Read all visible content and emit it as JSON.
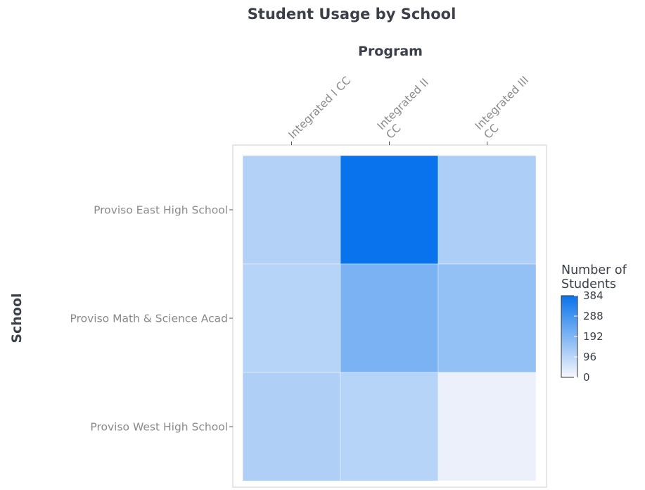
{
  "chart_data": {
    "type": "heatmap",
    "title": "Student Usage by School",
    "xlabel": "Program",
    "ylabel": "School",
    "x_categories": [
      "Integrated I CC",
      "Integrated II CC",
      "Integrated III CC"
    ],
    "x_tick_lines": [
      [
        "Integrated I CC"
      ],
      [
        "Integrated II",
        "CC"
      ],
      [
        "Integrated III",
        "CC"
      ]
    ],
    "y_categories": [
      "Proviso East High School",
      "Proviso Math & Science Acad",
      "Proviso West High School"
    ],
    "values": [
      [
        110,
        384,
        120
      ],
      [
        105,
        200,
        160
      ],
      [
        115,
        105,
        20
      ]
    ],
    "legend": {
      "title_lines": [
        "Number of",
        "Students"
      ],
      "ticks": [
        "384",
        "288",
        "192",
        "96",
        "0"
      ],
      "tick_values": [
        384,
        288,
        192,
        96,
        0
      ],
      "min": 0,
      "max": 384,
      "low_color": "#f7f7fc",
      "high_color": "#0873ec",
      "placement": "right"
    },
    "x_axis_position": "top",
    "grid": false
  }
}
